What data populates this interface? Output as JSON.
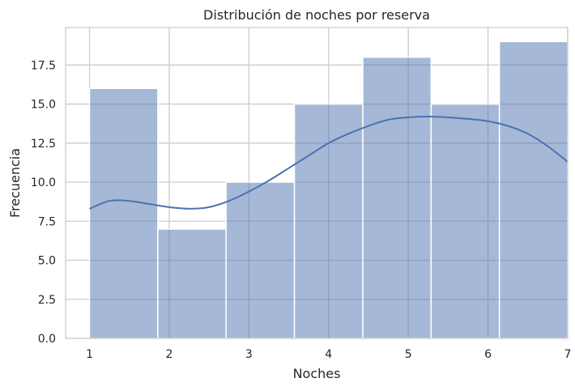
{
  "chart_data": {
    "type": "bar",
    "subtype": "histogram_with_kde",
    "title": "Distribución de noches por reserva",
    "xlabel": "Noches",
    "ylabel": "Frecuencia",
    "xlim": [
      0.7,
      7.0
    ],
    "ylim": [
      0,
      19.9
    ],
    "x_ticks": [
      1,
      2,
      3,
      4,
      5,
      6,
      7
    ],
    "x_tick_labels": [
      "1",
      "2",
      "3",
      "4",
      "5",
      "6",
      "7"
    ],
    "y_ticks": [
      0,
      2.5,
      5,
      7.5,
      10,
      12.5,
      15,
      17.5
    ],
    "y_tick_labels": [
      "0.0",
      "2.5",
      "5.0",
      "7.5",
      "10.0",
      "12.5",
      "15.0",
      "17.5"
    ],
    "grid": true,
    "bins": [
      {
        "start": 1.0,
        "end": 1.857,
        "count": 16
      },
      {
        "start": 1.857,
        "end": 2.714,
        "count": 7
      },
      {
        "start": 2.714,
        "end": 3.571,
        "count": 10
      },
      {
        "start": 3.571,
        "end": 4.429,
        "count": 15
      },
      {
        "start": 4.429,
        "end": 5.286,
        "count": 18
      },
      {
        "start": 5.286,
        "end": 6.143,
        "count": 15
      },
      {
        "start": 6.143,
        "end": 7.0,
        "count": 19
      }
    ],
    "kde": {
      "x": [
        1.0,
        1.25,
        1.5,
        1.75,
        2.0,
        2.25,
        2.5,
        2.75,
        3.0,
        3.25,
        3.5,
        3.75,
        4.0,
        4.25,
        4.5,
        4.75,
        5.0,
        5.25,
        5.5,
        5.75,
        6.0,
        6.25,
        6.5,
        6.75,
        7.0
      ],
      "y": [
        8.3,
        8.8,
        8.8,
        8.6,
        8.4,
        8.3,
        8.4,
        8.8,
        9.4,
        10.1,
        10.9,
        11.7,
        12.5,
        13.1,
        13.6,
        14.0,
        14.15,
        14.2,
        14.15,
        14.05,
        13.9,
        13.6,
        13.1,
        12.3,
        11.3
      ]
    },
    "colors": {
      "bar_fill": "#4c72b0",
      "bar_fill_opacity": 0.5,
      "bar_edge": "#ffffff",
      "kde_line": "#4c72b0",
      "grid": "#cccccc",
      "background": "#ffffff"
    }
  }
}
